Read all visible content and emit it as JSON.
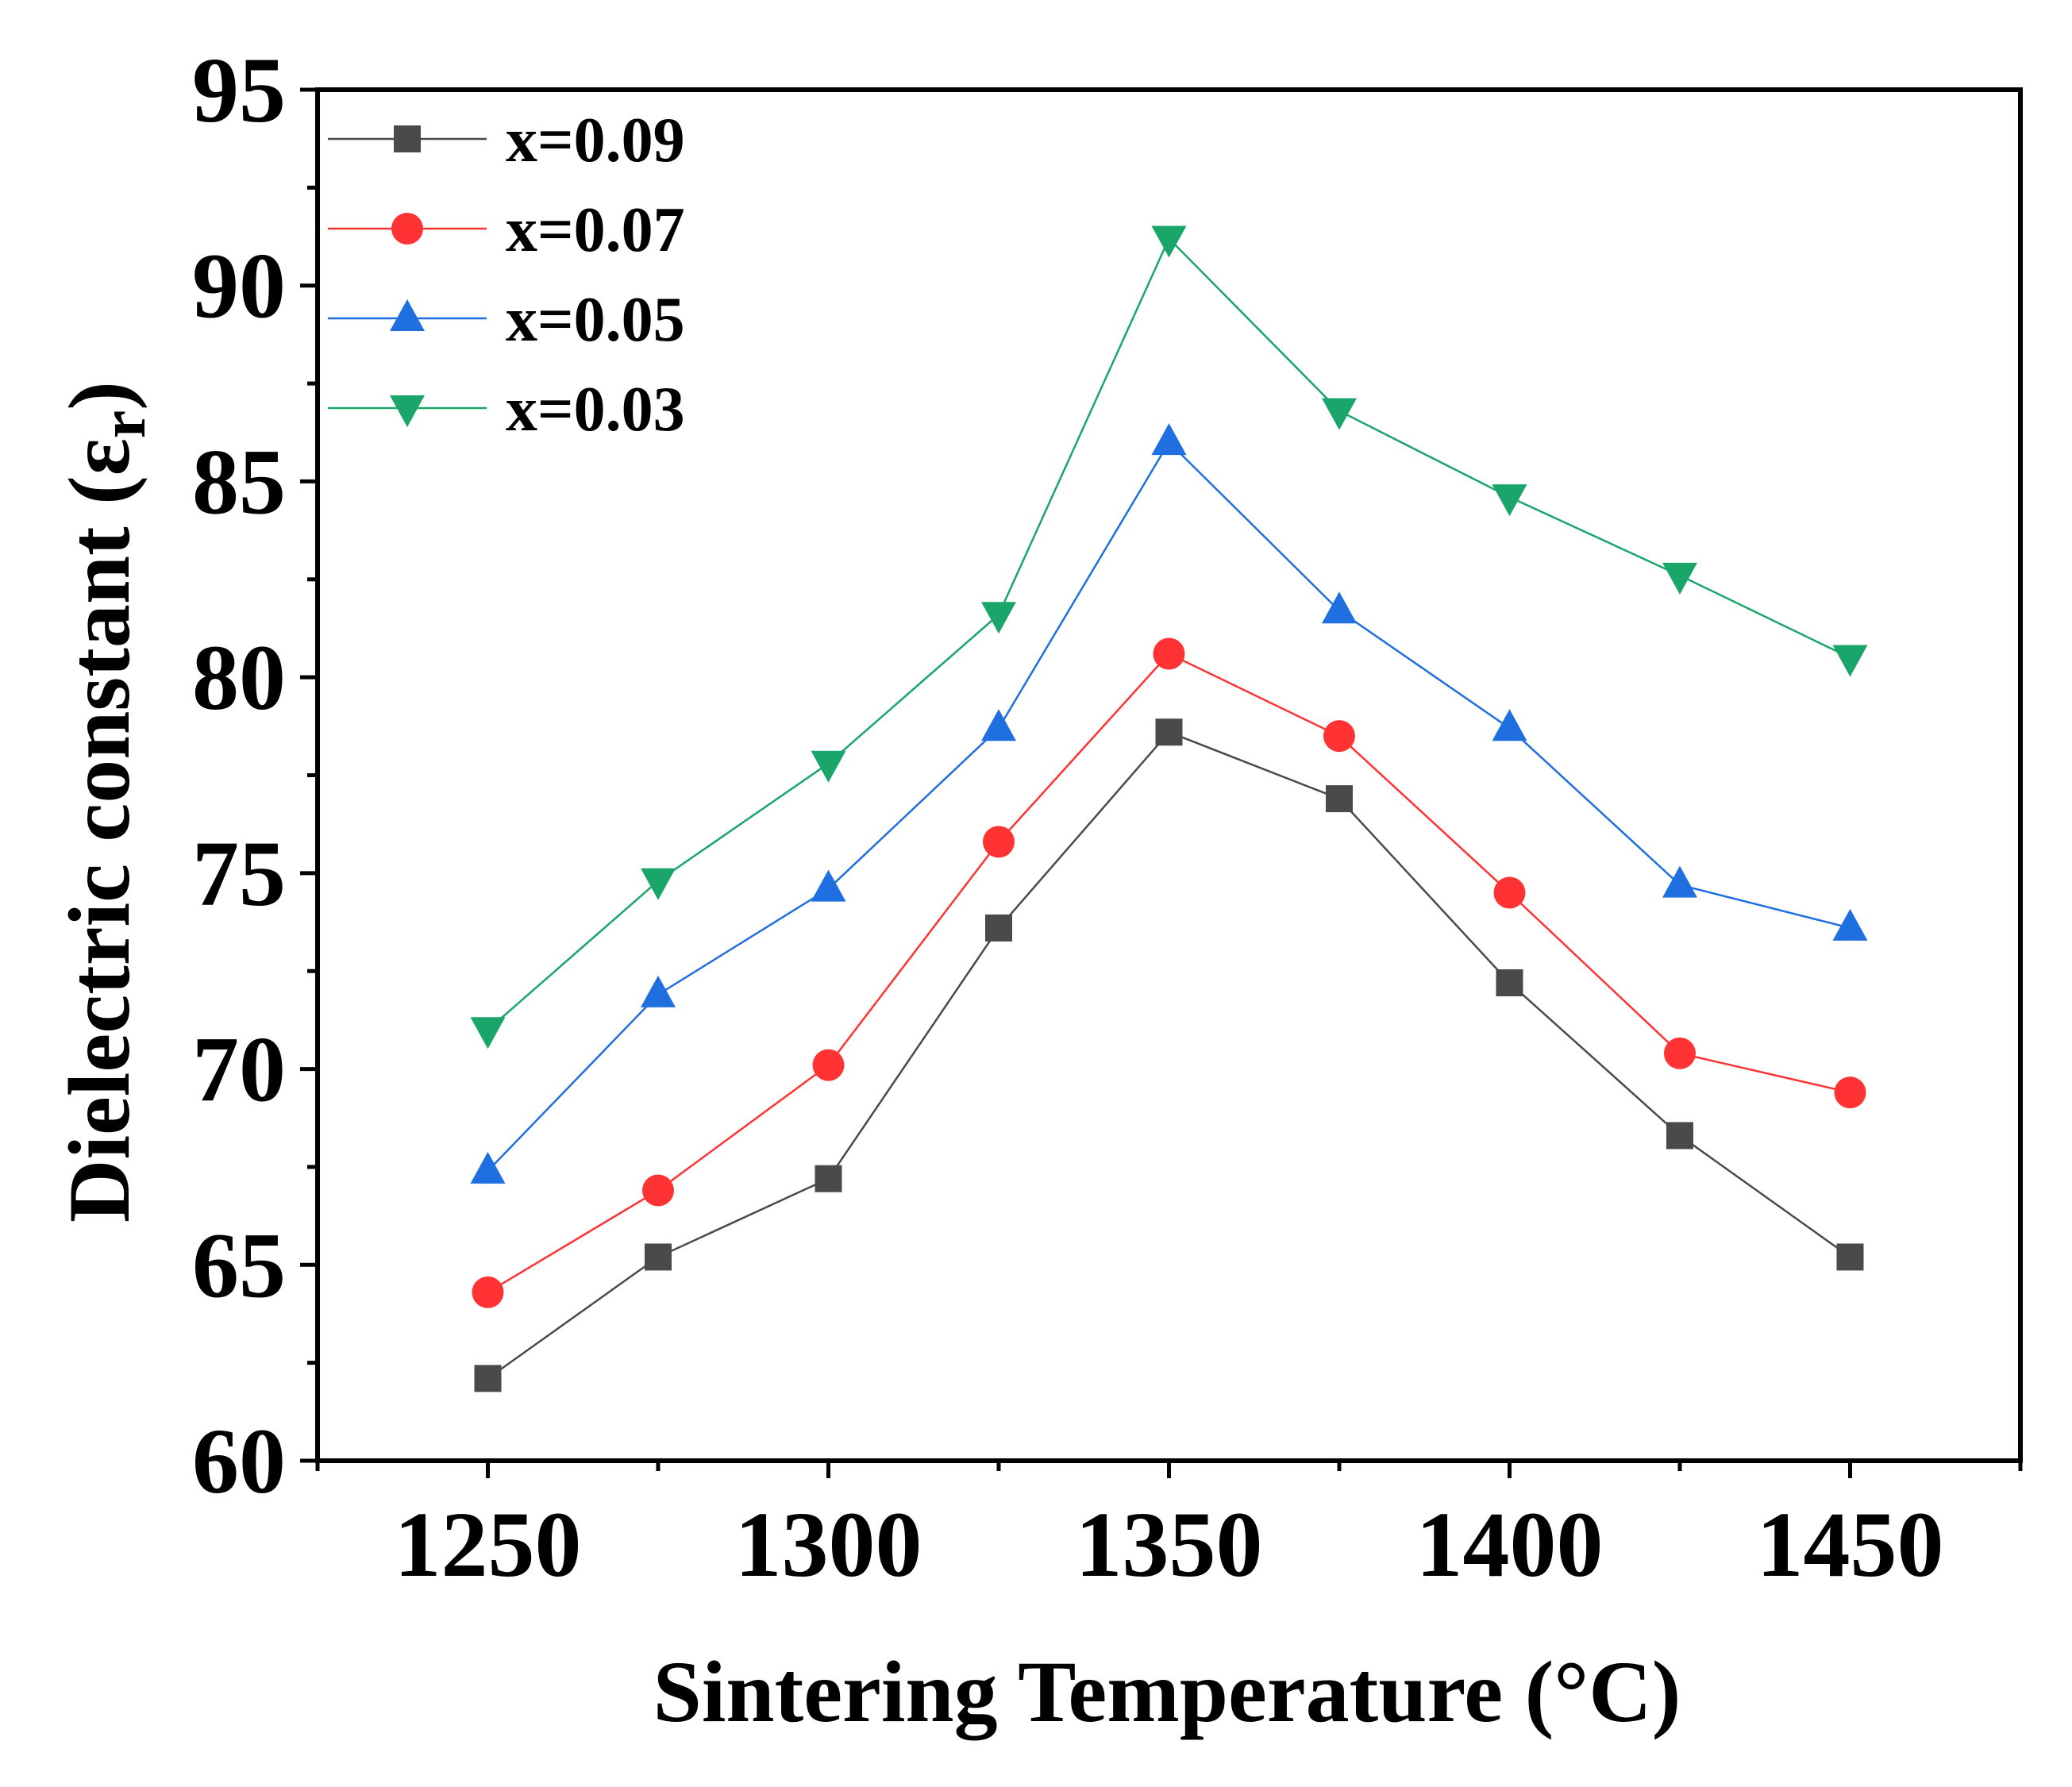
{
  "chart_data": {
    "type": "line",
    "xlabel": "Sintering Temperature (°C)",
    "ylabel_main": "Dielectric constant (ε",
    "ylabel_sub": "r",
    "ylabel_close": ")",
    "xlim": [
      1225,
      1475
    ],
    "ylim": [
      60,
      95
    ],
    "xticks": [
      1250,
      1300,
      1350,
      1400,
      1450
    ],
    "yticks": [
      60,
      65,
      70,
      75,
      80,
      85,
      90,
      95
    ],
    "x": [
      1250,
      1275,
      1300,
      1325,
      1350,
      1375,
      1400,
      1425,
      1450
    ],
    "legend_position": "top-left",
    "series": [
      {
        "name": "x=0.09",
        "color": "#4a4a4a",
        "marker": "square",
        "values": [
          62.1,
          65.2,
          67.2,
          73.6,
          78.6,
          76.9,
          72.2,
          68.3,
          65.2
        ]
      },
      {
        "name": "x=0.07",
        "color": "#ff3333",
        "marker": "circle",
        "values": [
          64.3,
          66.9,
          70.1,
          75.8,
          80.6,
          78.5,
          74.5,
          70.4,
          69.4
        ]
      },
      {
        "name": "x=0.05",
        "color": "#1f6fe0",
        "marker": "triangle-up",
        "values": [
          67.4,
          71.9,
          74.6,
          78.7,
          86.0,
          81.7,
          78.7,
          74.7,
          73.6
        ]
      },
      {
        "name": "x=0.03",
        "color": "#1aa66a",
        "marker": "triangle-down",
        "values": [
          71.0,
          74.8,
          77.8,
          81.6,
          91.2,
          86.8,
          84.6,
          82.6,
          80.5
        ]
      }
    ]
  }
}
